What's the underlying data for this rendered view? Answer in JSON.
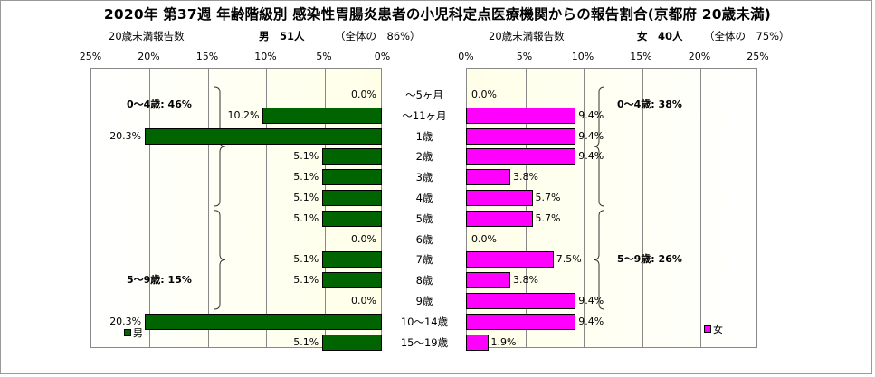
{
  "title": "2020年 第37週 年齢階級別 感染性胃腸炎患者の小児科定点医療機関からの報告割合(京都府 20歳未満)",
  "male_header": {
    "left": "20歳未満報告数",
    "label": "男　51人",
    "share": "（全体の　86%）"
  },
  "female_header": {
    "left": "20歳未満報告数",
    "label": "女　40人",
    "share": "（全体の　75%）"
  },
  "colors": {
    "male": "#006400",
    "female": "#ff00ff",
    "plot_bg": "#ffffe8",
    "grid": "#888888"
  },
  "chart_data": [
    {
      "type": "bar",
      "side": "male",
      "legend": "男",
      "xlim": [
        25,
        0
      ],
      "ticks": [
        "25%",
        "20%",
        "15%",
        "10%",
        "5%",
        "0%"
      ],
      "categories": [
        "～5ヶ月",
        "～11ヶ月",
        "1歳",
        "2歳",
        "3歳",
        "4歳",
        "5歳",
        "6歳",
        "7歳",
        "8歳",
        "9歳",
        "10～14歳",
        "15～19歳"
      ],
      "values": [
        0.0,
        10.2,
        20.3,
        5.1,
        5.1,
        5.1,
        5.1,
        0.0,
        5.1,
        5.1,
        0.0,
        20.3,
        5.1
      ],
      "labels": [
        "0.0%",
        "10.2%",
        "20.3%",
        "5.1%",
        "5.1%",
        "5.1%",
        "5.1%",
        "0.0%",
        "5.1%",
        "5.1%",
        "0.0%",
        "20.3%",
        "5.1%"
      ],
      "groups": [
        {
          "label": "0～4歳: 46%",
          "from": 0,
          "to": 5
        },
        {
          "label": "5～9歳: 15%",
          "from": 6,
          "to": 10
        }
      ]
    },
    {
      "type": "bar",
      "side": "female",
      "legend": "女",
      "xlim": [
        0,
        25
      ],
      "ticks": [
        "0%",
        "5%",
        "10%",
        "15%",
        "20%",
        "25%"
      ],
      "categories": [
        "～5ヶ月",
        "～11ヶ月",
        "1歳",
        "2歳",
        "3歳",
        "4歳",
        "5歳",
        "6歳",
        "7歳",
        "8歳",
        "9歳",
        "10～14歳",
        "15～19歳"
      ],
      "values": [
        0.0,
        9.4,
        9.4,
        9.4,
        3.8,
        5.7,
        5.7,
        0.0,
        7.5,
        3.8,
        9.4,
        9.4,
        1.9
      ],
      "labels": [
        "0.0%",
        "9.4%",
        "9.4%",
        "9.4%",
        "3.8%",
        "5.7%",
        "5.7%",
        "0.0%",
        "7.5%",
        "3.8%",
        "9.4%",
        "9.4%",
        "1.9%"
      ],
      "groups": [
        {
          "label": "0～4歳: 38%",
          "from": 0,
          "to": 5
        },
        {
          "label": "5～9歳: 26%",
          "from": 6,
          "to": 10
        }
      ]
    }
  ]
}
